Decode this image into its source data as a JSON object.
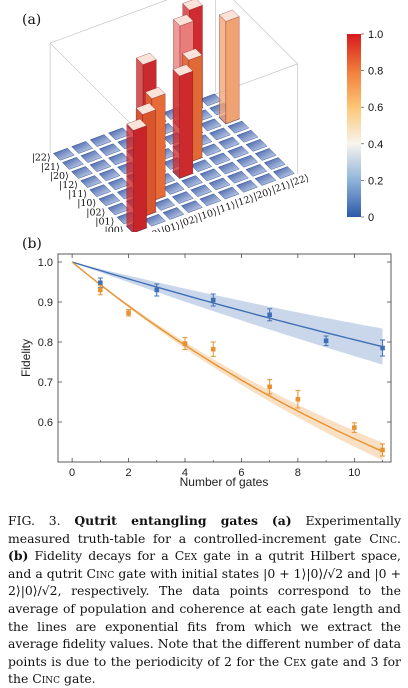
{
  "panel_a": {
    "label": "(a)",
    "row_labels": [
      "|00⟩",
      "|01⟩",
      "|02⟩",
      "|10⟩",
      "|11⟩",
      "|12⟩",
      "|20⟩",
      "|21⟩",
      "|22⟩"
    ],
    "col_labels": [
      "|00⟩",
      "|01⟩",
      "|02⟩",
      "|10⟩",
      "|11⟩",
      "|12⟩",
      "|20⟩",
      "|21⟩",
      "|22⟩"
    ],
    "colorbar_ticks": [
      "1.0",
      "0.8",
      "0.6",
      "0.4",
      "0.2",
      "0"
    ],
    "colorbar_colors": [
      "#d7191c",
      "#f07c3a",
      "#fdc676",
      "#f7f4ee",
      "#8fb3da",
      "#2c5aa8"
    ]
  },
  "panel_b": {
    "label": "(b)",
    "xlabel": "Number of gates",
    "ylabel": "Fidelity"
  },
  "chart_data": {
    "type": "scatter",
    "xlim": [
      -0.5,
      11.3
    ],
    "ylim": [
      0.5,
      1.02
    ],
    "xticks": [
      "0",
      "2",
      "4",
      "6",
      "8",
      "10"
    ],
    "yticks": [
      "0.6",
      "0.7",
      "0.8",
      "0.9",
      "1.0"
    ],
    "grid": false,
    "series": [
      {
        "color": "#3f6fb5",
        "x": [
          1,
          3,
          5,
          7,
          9,
          11
        ],
        "y": [
          0.948,
          0.93,
          0.905,
          0.868,
          0.803,
          0.785
        ],
        "err": [
          0.012,
          0.015,
          0.015,
          0.015,
          0.012,
          0.02
        ],
        "fit_decay": 0.0216,
        "band": 0.045
      },
      {
        "color": "#e8912f",
        "x": [
          1,
          2,
          4,
          5,
          7,
          8,
          10,
          11
        ],
        "y": [
          0.93,
          0.873,
          0.796,
          0.782,
          0.688,
          0.657,
          0.586,
          0.53
        ],
        "err": [
          0.012,
          0.008,
          0.015,
          0.018,
          0.018,
          0.022,
          0.012,
          0.015
        ],
        "fit_decay": 0.0583,
        "band": 0.022
      }
    ]
  },
  "caption": {
    "fig_label": "FIG. 3.",
    "title": "Qutrit entangling gates",
    "a_label": "(a)",
    "a_text": "Experimentally measured truth-table for a controlled-increment gate",
    "a_gate": "Cinc",
    "b_label": "(b)",
    "b_text1": "Fidelity decays for a",
    "b_gate1": "Cex",
    "b_text2": "gate in a qutrit Hilbert space, and a qutrit",
    "b_gate2": "Cinc",
    "b_text3": "gate with initial states |0 + 1⟩|0⟩/√2 and |0 + 2⟩|0⟩/√2, respectively. The data points correspond to the average of population and coherence at each gate length and the lines are exponential fits from which we extract the average fidelity values. Note that the different number of data points is due to the periodicity of 2 for the",
    "b_gate3": "Cex",
    "b_text4": "gate and 3 for the",
    "b_gate4": "Cinc",
    "b_text5": "gate."
  }
}
